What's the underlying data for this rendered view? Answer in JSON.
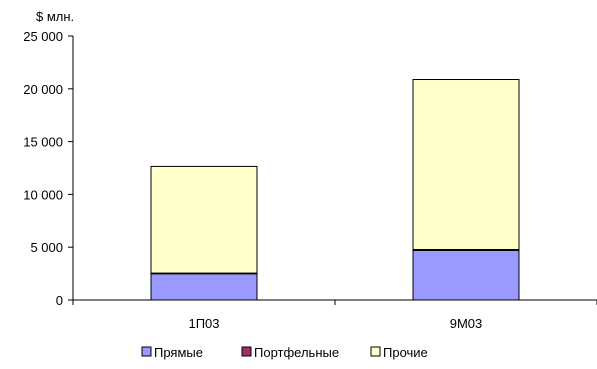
{
  "chart_data": {
    "type": "bar",
    "stacked": true,
    "unit_label": "$ млн.",
    "categories": [
      "1П03",
      "9М03"
    ],
    "series": [
      {
        "name": "Прямые",
        "color": "#9999ff",
        "values": [
          2500,
          4700
        ]
      },
      {
        "name": "Портфельные",
        "color": "#993366",
        "values": [
          50,
          80
        ]
      },
      {
        "name": "Прочие",
        "color": "#ffffcc",
        "values": [
          10100,
          16100
        ]
      }
    ],
    "y_ticks": [
      "0",
      "5 000",
      "10 000",
      "15 000",
      "20 000",
      "25 000"
    ],
    "ylim": [
      0,
      25000
    ],
    "grid": false,
    "legend_position": "bottom"
  }
}
